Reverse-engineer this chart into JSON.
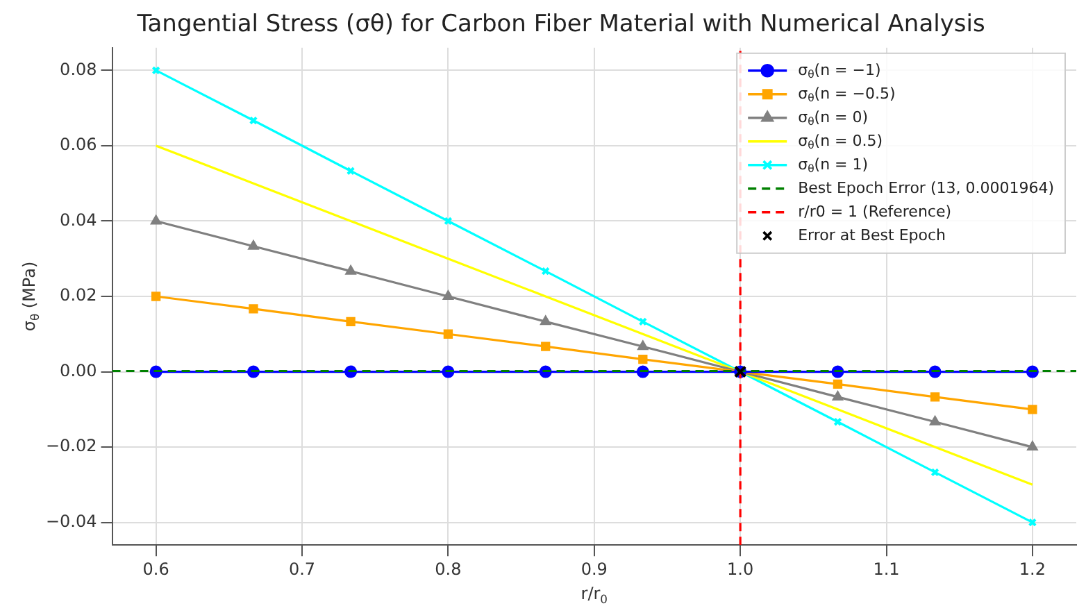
{
  "chart_data": {
    "type": "line",
    "title": "Tangential Stress (σθ) for Carbon Fiber Material with Numerical Analysis",
    "xlabel": "r/r$_{0}$",
    "ylabel": "σ$_{θ}$ (MPa)",
    "x": [
      0.6,
      0.6667,
      0.7333,
      0.8,
      0.8667,
      0.9333,
      1.0,
      1.0667,
      1.1333,
      1.2
    ],
    "series": [
      {
        "name": "σ$_{θ}$(n = −1)",
        "color": "#0000ff",
        "marker": "circle",
        "values": [
          0,
          0,
          0,
          0,
          0,
          0,
          0,
          0,
          0,
          0
        ]
      },
      {
        "name": "σ$_{θ}$(n = −0.5)",
        "color": "#ffa500",
        "marker": "square",
        "values": [
          0.02,
          0.0167,
          0.0133,
          0.01,
          0.0067,
          0.0033,
          0,
          -0.0033,
          -0.0067,
          -0.01
        ]
      },
      {
        "name": "σ$_{θ}$(n = 0)",
        "color": "#808080",
        "marker": "triangle",
        "values": [
          0.04,
          0.0333,
          0.0267,
          0.02,
          0.0133,
          0.0067,
          0,
          -0.0067,
          -0.0133,
          -0.02
        ]
      },
      {
        "name": "σ$_{θ}$(n = 0.5)",
        "color": "#ffff00",
        "marker": "none",
        "values": [
          0.06,
          0.05,
          0.04,
          0.03,
          0.02,
          0.01,
          0,
          -0.01,
          -0.02,
          -0.03
        ]
      },
      {
        "name": "σ$_{θ}$(n = 1)",
        "color": "#00ffff",
        "marker": "cross",
        "values": [
          0.08,
          0.0667,
          0.0533,
          0.04,
          0.0267,
          0.0133,
          0,
          -0.0133,
          -0.0267,
          -0.04
        ]
      },
      {
        "type": "scatter",
        "name": "Error at Best Epoch",
        "color": "#000000",
        "marker": "cross",
        "x": [
          1.0
        ],
        "values": [
          0
        ]
      }
    ],
    "ref_lines": [
      {
        "axis": "y",
        "value": 0.0001964,
        "label": "Best Epoch Error (13, 0.0001964)",
        "color": "#008000",
        "line_style": "dashed"
      },
      {
        "axis": "x",
        "value": 1,
        "label": "r/r0 = 1 (Reference)",
        "color": "#ff0000",
        "line_style": "dashed"
      }
    ],
    "xlim": [
      0.57,
      1.23
    ],
    "xticks": [
      {
        "value": 0.6,
        "label": "0.6"
      },
      {
        "value": 0.7,
        "label": "0.7"
      },
      {
        "value": 0.8,
        "label": "0.8"
      },
      {
        "value": 0.9,
        "label": "0.9"
      },
      {
        "value": 1.0,
        "label": "1.0"
      },
      {
        "value": 1.1,
        "label": "1.1"
      },
      {
        "value": 1.2,
        "label": "1.2"
      }
    ],
    "ylim": [
      -0.046,
      0.086
    ],
    "yticks": [
      {
        "value": -0.04,
        "label": "−0.04"
      },
      {
        "value": -0.02,
        "label": "−0.02"
      },
      {
        "value": 0,
        "label": "0.00"
      },
      {
        "value": 0.02,
        "label": "0.02"
      },
      {
        "value": 0.04,
        "label": "0.04"
      },
      {
        "value": 0.06,
        "label": "0.06"
      },
      {
        "value": 0.08,
        "label": "0.08"
      }
    ],
    "grid": true,
    "legend": "top right",
    "line_style": "solid"
  }
}
